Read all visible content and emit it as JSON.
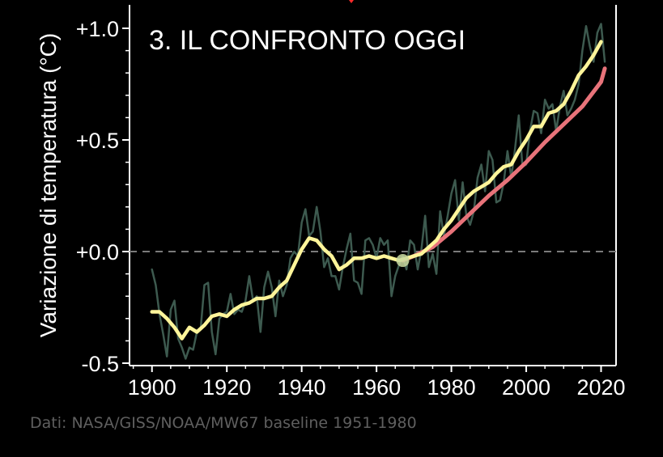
{
  "chart_data": {
    "type": "line",
    "title": "3. IL CONFRONTO OGGI",
    "ylabel": "Variazione di temperatura (°C)",
    "xlabel": "",
    "xlim": [
      1894,
      2024
    ],
    "ylim": [
      -0.5,
      1.1
    ],
    "x_ticks": [
      1900,
      1920,
      1940,
      1960,
      1980,
      2000,
      2020
    ],
    "x_tick_labels": [
      "1900",
      "1920",
      "1940",
      "1960",
      "1980",
      "2000",
      "2020"
    ],
    "y_ticks": [
      -0.5,
      0.0,
      0.5,
      1.0
    ],
    "y_tick_labels": [
      "-0.5",
      "+0.0",
      "+0.5",
      "+1.0"
    ],
    "baseline": 0.0,
    "grid": false,
    "colors": {
      "annual": "#3d5a4f",
      "smoothed": "#fff59a",
      "projection": "#e8737a",
      "highlight": "#c9d9a0",
      "baseline": "#7a7a7a"
    },
    "series": [
      {
        "role": "annual",
        "x": [
          1900,
          1901,
          1902,
          1903,
          1904,
          1905,
          1906,
          1907,
          1908,
          1909,
          1910,
          1911,
          1912,
          1913,
          1914,
          1915,
          1916,
          1917,
          1918,
          1919,
          1920,
          1921,
          1922,
          1923,
          1924,
          1925,
          1926,
          1927,
          1928,
          1929,
          1930,
          1931,
          1932,
          1933,
          1934,
          1935,
          1936,
          1937,
          1938,
          1939,
          1940,
          1941,
          1942,
          1943,
          1944,
          1945,
          1946,
          1947,
          1948,
          1949,
          1950,
          1951,
          1952,
          1953,
          1954,
          1955,
          1956,
          1957,
          1958,
          1959,
          1960,
          1961,
          1962,
          1963,
          1964,
          1965,
          1966,
          1967,
          1968,
          1969,
          1970,
          1971,
          1972,
          1973,
          1974,
          1975,
          1976,
          1977,
          1978,
          1979,
          1980,
          1981,
          1982,
          1983,
          1984,
          1985,
          1986,
          1987,
          1988,
          1989,
          1990,
          1991,
          1992,
          1993,
          1994,
          1995,
          1996,
          1997,
          1998,
          1999,
          2000,
          2001,
          2002,
          2003,
          2004,
          2005,
          2006,
          2007,
          2008,
          2009,
          2010,
          2011,
          2012,
          2013,
          2014,
          2015,
          2016,
          2017,
          2018,
          2019,
          2020,
          2021
        ],
        "y": [
          -0.08,
          -0.15,
          -0.28,
          -0.37,
          -0.47,
          -0.26,
          -0.22,
          -0.39,
          -0.43,
          -0.48,
          -0.43,
          -0.44,
          -0.36,
          -0.35,
          -0.15,
          -0.14,
          -0.36,
          -0.46,
          -0.3,
          -0.28,
          -0.27,
          -0.19,
          -0.28,
          -0.26,
          -0.27,
          -0.22,
          -0.11,
          -0.22,
          -0.2,
          -0.36,
          -0.16,
          -0.09,
          -0.16,
          -0.29,
          -0.13,
          -0.2,
          -0.15,
          -0.03,
          0.0,
          -0.02,
          0.13,
          0.19,
          0.07,
          0.09,
          0.2,
          0.09,
          -0.07,
          -0.03,
          -0.11,
          -0.11,
          -0.17,
          -0.07,
          0.01,
          0.08,
          -0.13,
          -0.14,
          -0.19,
          0.05,
          0.06,
          0.03,
          -0.03,
          0.06,
          0.03,
          0.05,
          -0.2,
          -0.11,
          -0.06,
          -0.02,
          -0.08,
          0.05,
          0.03,
          -0.08,
          0.01,
          0.16,
          -0.07,
          -0.01,
          -0.1,
          0.18,
          0.07,
          0.16,
          0.26,
          0.32,
          0.14,
          0.31,
          0.16,
          0.12,
          0.18,
          0.33,
          0.39,
          0.27,
          0.45,
          0.41,
          0.22,
          0.23,
          0.31,
          0.45,
          0.33,
          0.46,
          0.61,
          0.38,
          0.39,
          0.54,
          0.63,
          0.62,
          0.53,
          0.68,
          0.64,
          0.66,
          0.54,
          0.65,
          0.72,
          0.61,
          0.64,
          0.68,
          0.75,
          0.9,
          1.01,
          0.92,
          0.85,
          0.98,
          1.02,
          0.85
        ]
      },
      {
        "role": "smoothed",
        "x": [
          1900,
          1902,
          1904,
          1906,
          1908,
          1910,
          1912,
          1914,
          1916,
          1918,
          1920,
          1922,
          1924,
          1926,
          1928,
          1930,
          1932,
          1934,
          1936,
          1938,
          1940,
          1942,
          1944,
          1946,
          1948,
          1950,
          1952,
          1954,
          1956,
          1958,
          1960,
          1962,
          1964,
          1966,
          1968,
          1970,
          1972,
          1974,
          1976,
          1978,
          1980,
          1982,
          1984,
          1986,
          1988,
          1990,
          1992,
          1994,
          1996,
          1998,
          2000,
          2002,
          2004,
          2006,
          2008,
          2010,
          2012,
          2014,
          2016,
          2018,
          2020
        ],
        "y": [
          -0.27,
          -0.27,
          -0.3,
          -0.34,
          -0.39,
          -0.34,
          -0.36,
          -0.33,
          -0.29,
          -0.28,
          -0.29,
          -0.26,
          -0.24,
          -0.23,
          -0.21,
          -0.21,
          -0.2,
          -0.16,
          -0.13,
          -0.06,
          0.01,
          0.06,
          0.05,
          0.01,
          -0.02,
          -0.08,
          -0.06,
          -0.03,
          -0.03,
          -0.02,
          -0.03,
          -0.02,
          -0.03,
          -0.04,
          -0.03,
          -0.02,
          -0.01,
          0.02,
          0.05,
          0.1,
          0.14,
          0.19,
          0.24,
          0.27,
          0.29,
          0.31,
          0.35,
          0.38,
          0.39,
          0.45,
          0.5,
          0.56,
          0.56,
          0.62,
          0.63,
          0.66,
          0.72,
          0.79,
          0.83,
          0.88,
          0.94
        ]
      },
      {
        "role": "projection",
        "x": [
          1967,
          1970,
          1975,
          1980,
          1985,
          1990,
          1995,
          2000,
          2005,
          2010,
          2015,
          2020,
          2021
        ],
        "y": [
          -0.04,
          -0.02,
          0.02,
          0.09,
          0.17,
          0.25,
          0.32,
          0.4,
          0.49,
          0.57,
          0.65,
          0.76,
          0.82
        ]
      }
    ],
    "highlight_point": {
      "x": 1967,
      "y": -0.04
    }
  },
  "footer": {
    "source": "Dati: NASA/GISS/NOAA/MW67 baseline 1951-1980"
  }
}
